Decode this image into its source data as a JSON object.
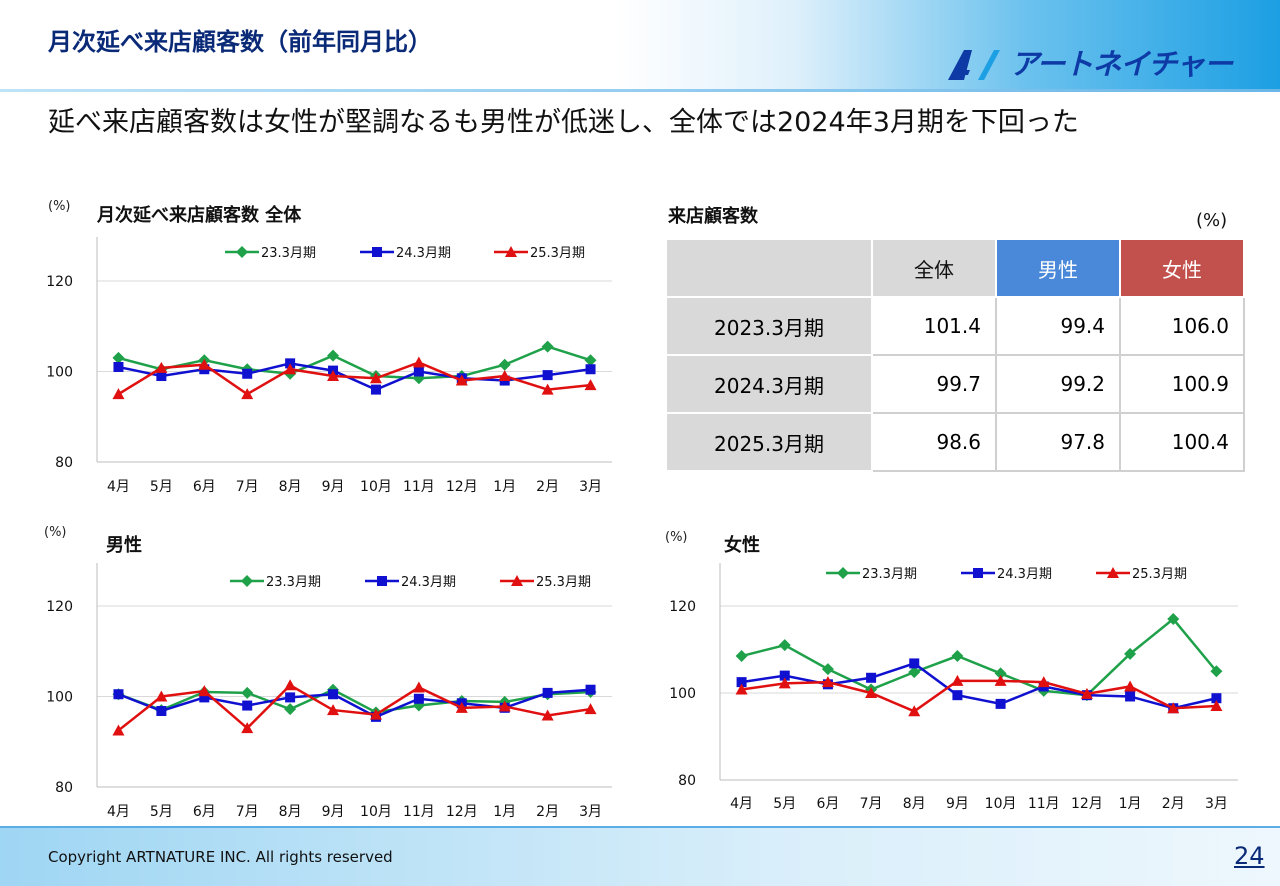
{
  "header": {
    "title": "月次延べ来店顧客数（前年同月比）",
    "logo_text": "アートネイチャー",
    "logo_mark": "A/"
  },
  "headline": "延べ来店顧客数は女性が堅調なるも男性が低迷し、全体では2024年3月期を下回った",
  "colors": {
    "series_23": "#1fa14a",
    "series_24": "#1010d0",
    "series_25": "#e01010",
    "male_header": "#4a89d9",
    "female_header": "#c2504d"
  },
  "chart_data": [
    {
      "id": "total",
      "type": "line",
      "title": "月次延べ来店顧客数 全体",
      "unit": "(%)",
      "categories": [
        "4月",
        "5月",
        "6月",
        "7月",
        "8月",
        "9月",
        "10月",
        "11月",
        "12月",
        "1月",
        "2月",
        "3月"
      ],
      "ylim": [
        80,
        120
      ],
      "yticks": [
        80,
        100,
        120
      ],
      "legend": "top",
      "series": [
        {
          "name": "23.3月期",
          "marker": "diamond",
          "values": [
            103,
            100.5,
            102.5,
            100.5,
            99.5,
            103.5,
            99,
            98.5,
            99,
            101.5,
            105.5,
            102.5
          ]
        },
        {
          "name": "24.3月期",
          "marker": "square",
          "values": [
            101,
            99,
            100.5,
            99.5,
            101.8,
            100.2,
            96,
            100,
            98.5,
            98,
            99.2,
            100.5
          ]
        },
        {
          "name": "25.3月期",
          "marker": "triangle",
          "values": [
            95,
            100.8,
            101.5,
            95,
            100.5,
            99,
            98.5,
            102,
            98,
            99,
            96,
            97
          ]
        }
      ]
    },
    {
      "id": "male",
      "type": "line",
      "title": "男性",
      "unit": "(%)",
      "categories": [
        "4月",
        "5月",
        "6月",
        "7月",
        "8月",
        "9月",
        "10月",
        "11月",
        "12月",
        "1月",
        "2月",
        "3月"
      ],
      "ylim": [
        80,
        120
      ],
      "yticks": [
        80,
        100,
        120
      ],
      "legend": "top",
      "series": [
        {
          "name": "23.3月期",
          "marker": "diamond",
          "values": [
            100.5,
            97,
            101,
            100.8,
            97.2,
            101.5,
            96.5,
            98,
            99,
            98.8,
            100.5,
            101
          ]
        },
        {
          "name": "24.3月期",
          "marker": "square",
          "values": [
            100.5,
            96.8,
            99.8,
            98,
            99.8,
            100.5,
            95.5,
            99.5,
            98.5,
            97.5,
            100.8,
            101.5
          ]
        },
        {
          "name": "25.3月期",
          "marker": "triangle",
          "values": [
            92.5,
            100,
            101.2,
            93,
            102.5,
            97,
            96,
            102,
            97.5,
            97.8,
            95.8,
            97.2
          ]
        }
      ]
    },
    {
      "id": "female",
      "type": "line",
      "title": "女性",
      "unit": "(%)",
      "categories": [
        "4月",
        "5月",
        "6月",
        "7月",
        "8月",
        "9月",
        "10月",
        "11月",
        "12月",
        "1月",
        "2月",
        "3月"
      ],
      "ylim": [
        80,
        120
      ],
      "yticks": [
        80,
        100,
        120
      ],
      "legend": "top",
      "series": [
        {
          "name": "23.3月期",
          "marker": "diamond",
          "values": [
            108.5,
            111,
            105.5,
            100.8,
            104.8,
            108.5,
            104.5,
            100.5,
            99.5,
            109,
            117,
            105
          ]
        },
        {
          "name": "24.3月期",
          "marker": "square",
          "values": [
            102.5,
            104,
            102,
            103.5,
            106.8,
            99.5,
            97.5,
            101.5,
            99.5,
            99.2,
            96.5,
            98.8
          ]
        },
        {
          "name": "25.3月期",
          "marker": "triangle",
          "values": [
            100.8,
            102.2,
            102.5,
            100,
            95.8,
            102.8,
            102.8,
            102.5,
            99.8,
            101.5,
            96.5,
            97
          ]
        }
      ]
    }
  ],
  "table": {
    "title": "来店顧客数",
    "unit": "(%)",
    "headers": [
      "全体",
      "男性",
      "女性"
    ],
    "rows": [
      {
        "label": "2023.3月期",
        "values": [
          "101.4",
          "99.4",
          "106.0"
        ]
      },
      {
        "label": "2024.3月期",
        "values": [
          "99.7",
          "99.2",
          "100.9"
        ]
      },
      {
        "label": "2025.3月期",
        "values": [
          "98.6",
          "97.8",
          "100.4"
        ]
      }
    ]
  },
  "footer": {
    "copyright": "Copyright ARTNATURE INC. All rights reserved",
    "page_number": "24"
  }
}
